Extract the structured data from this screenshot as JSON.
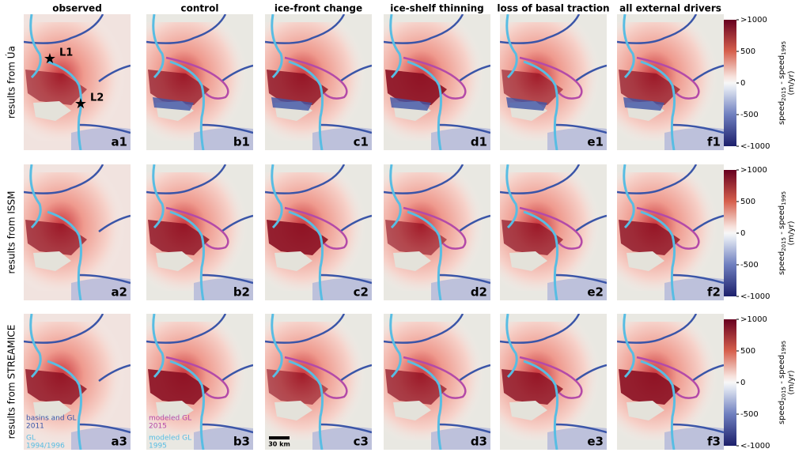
{
  "columns": [
    "observed",
    "control",
    "ice-front change",
    "ice-shelf thinning",
    "loss of basal traction",
    "all external drivers"
  ],
  "rows": [
    {
      "label": "results from Úa",
      "panels": [
        "a1",
        "b1",
        "c1",
        "d1",
        "e1",
        "f1"
      ]
    },
    {
      "label": "results from ISSM",
      "panels": [
        "a2",
        "b2",
        "c2",
        "d2",
        "e2",
        "f2"
      ]
    },
    {
      "label": "results from STREAMICE",
      "panels": [
        "a3",
        "b3",
        "c3",
        "d3",
        "e3",
        "f3"
      ]
    }
  ],
  "markers": [
    "L1",
    "L2"
  ],
  "colorbar": {
    "label": [
      "speed",
      "2015",
      " - speed",
      "1995"
    ],
    "unit": "(m/yr)",
    "range": [
      -1000,
      1000
    ],
    "ticks": [
      {
        "value": 1000,
        "label": ">1000"
      },
      500,
      0,
      -500,
      {
        "value": -1000,
        "label": "<-1000"
      }
    ]
  },
  "legend": {
    "basins": [
      "basins and GL",
      "2011"
    ],
    "gl_obs": [
      "GL",
      "1994/1996"
    ],
    "gl_2015": [
      "modeled GL",
      "2015"
    ],
    "gl_1995": [
      "modeled GL",
      "1995"
    ]
  },
  "scale_bar": "30 km"
}
